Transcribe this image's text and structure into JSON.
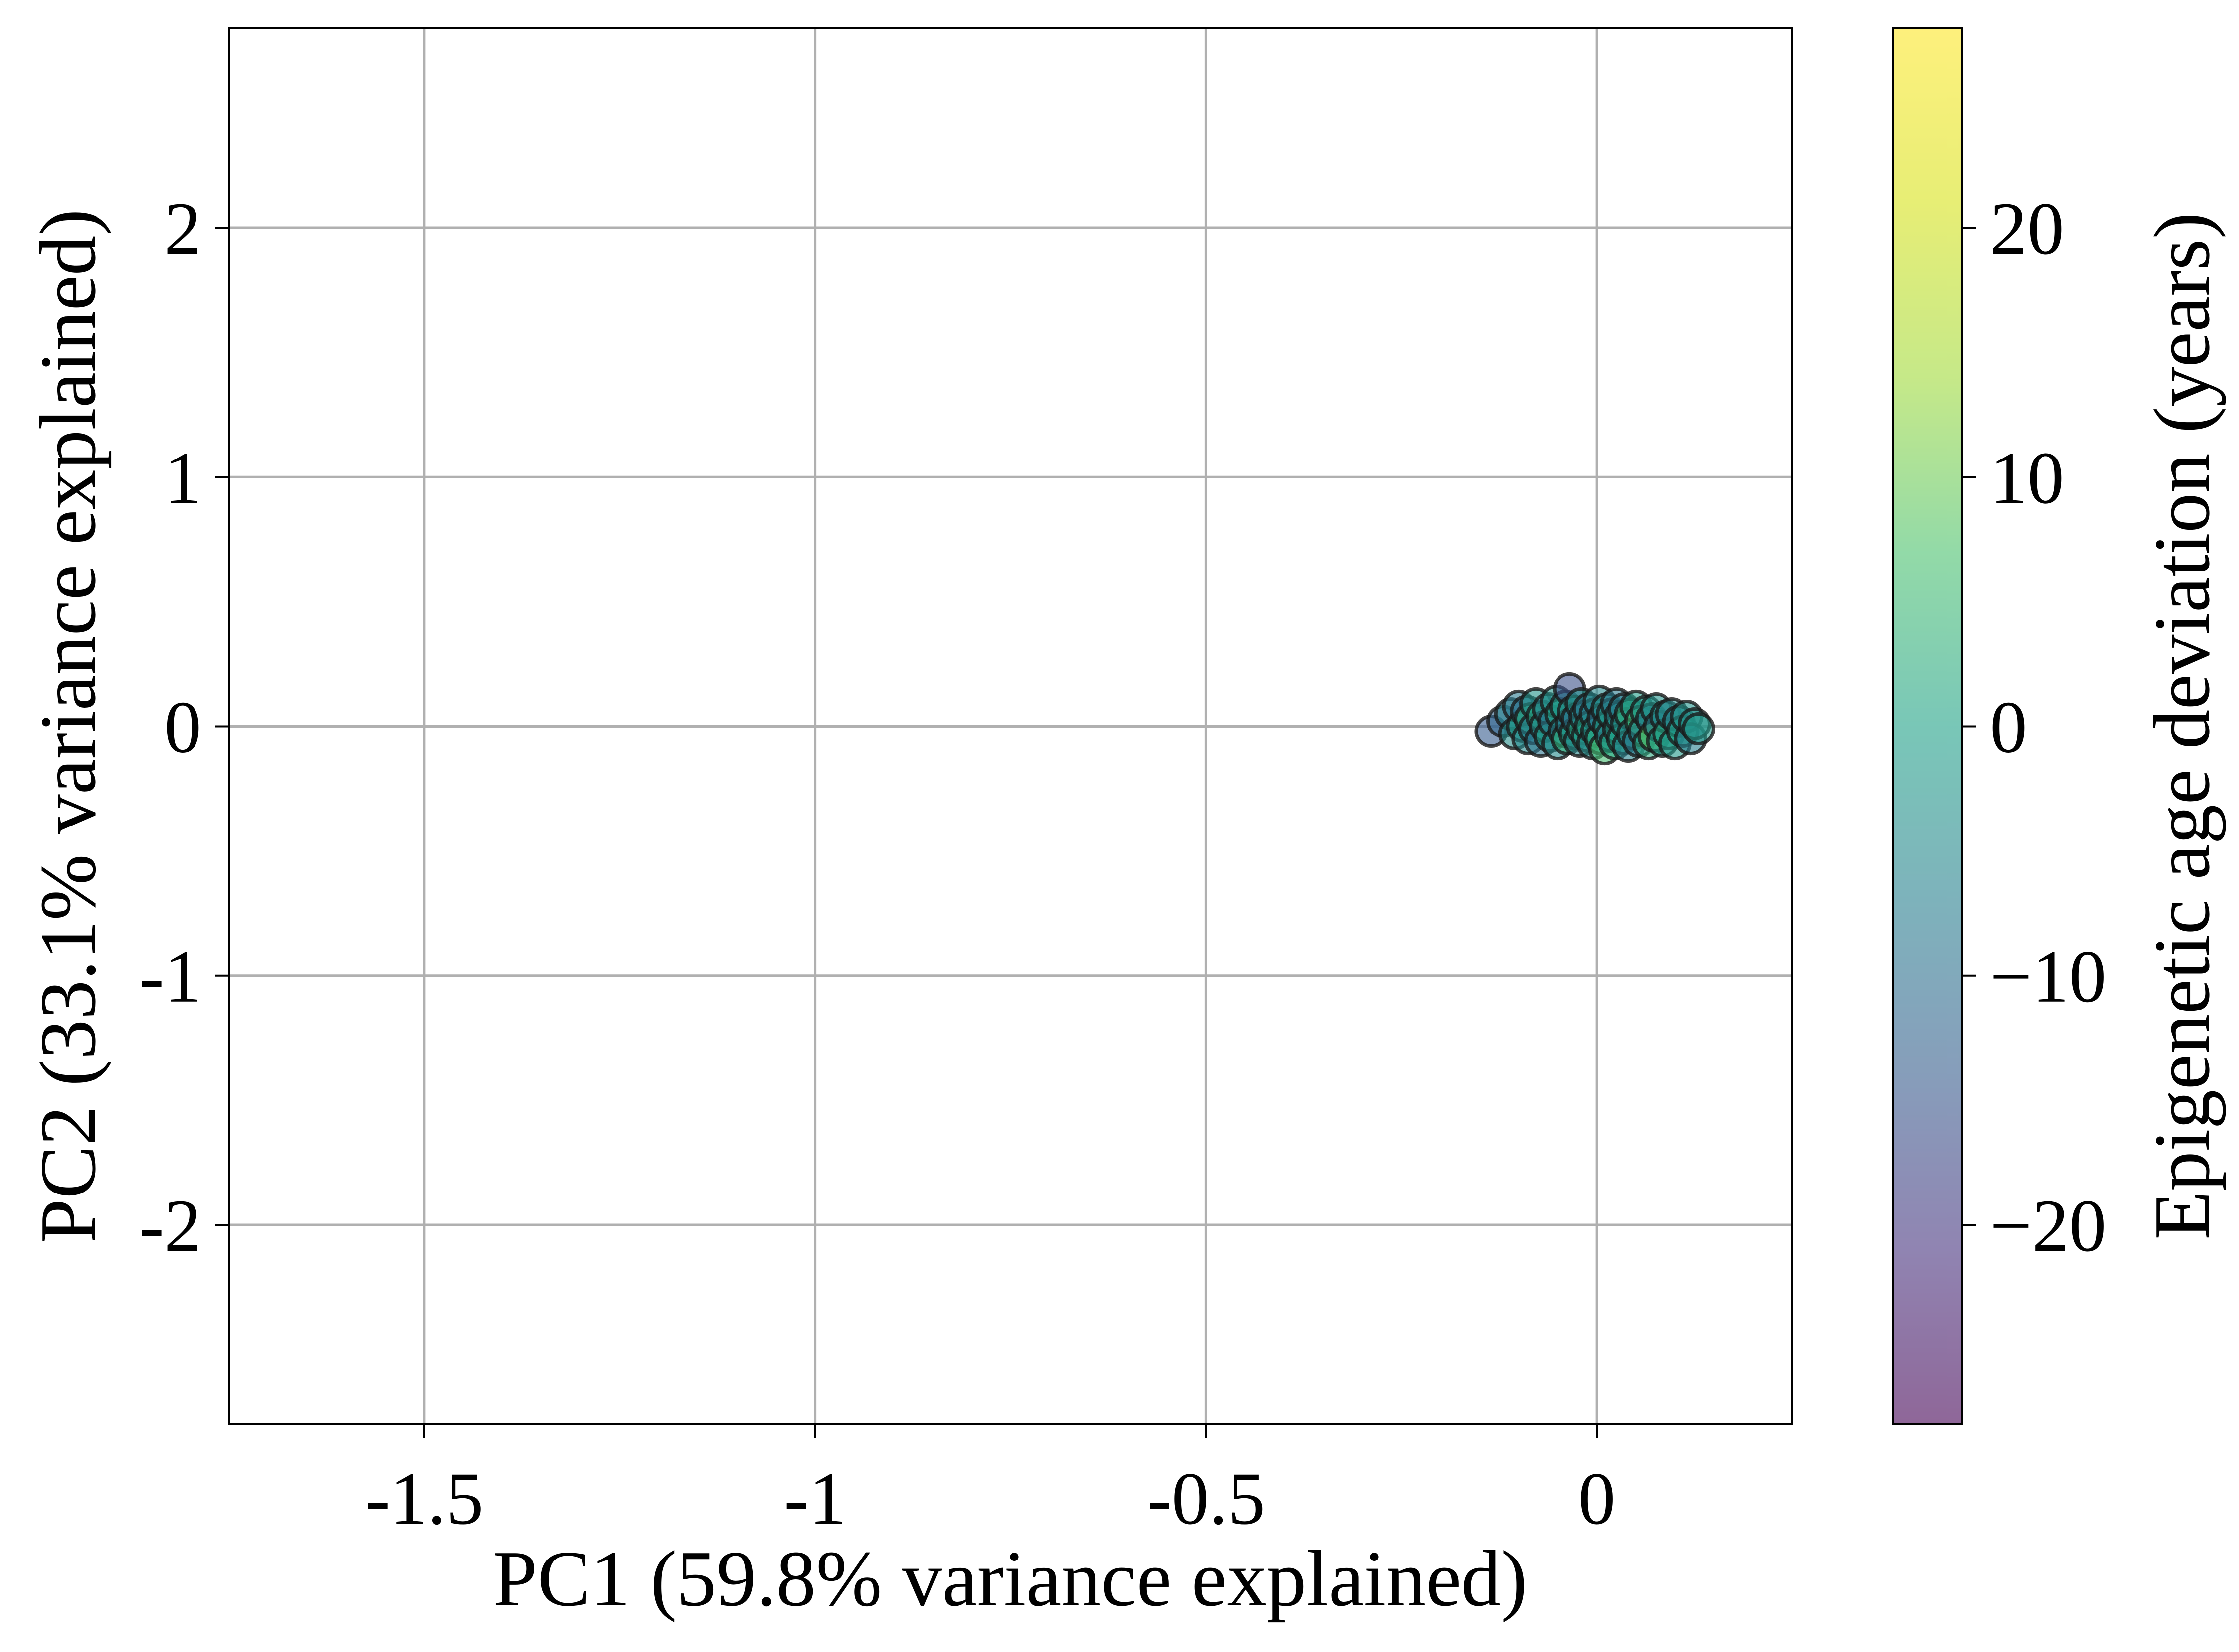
{
  "chart_data": {
    "type": "scatter",
    "title": "",
    "xlabel": "PC1 (59.8% variance explained)",
    "ylabel": "PC2 (33.1% variance explained)",
    "xlim": [
      -1.75,
      0.25
    ],
    "ylim": [
      -2.8,
      2.8
    ],
    "x_ticks": [
      {
        "value": -1.5,
        "label": "-1.5"
      },
      {
        "value": -1.0,
        "label": "-1"
      },
      {
        "value": -0.5,
        "label": "-0.5"
      },
      {
        "value": 0.0,
        "label": "0"
      }
    ],
    "y_ticks": [
      {
        "value": 2,
        "label": "2"
      },
      {
        "value": 1,
        "label": "1"
      },
      {
        "value": 0,
        "label": "0"
      },
      {
        "value": -1,
        "label": "-1"
      },
      {
        "value": -2,
        "label": "-2"
      }
    ],
    "grid": true,
    "colorbar": {
      "label": "Epigenetic age deviation (years)",
      "colormap": "viridis",
      "range": [
        -28,
        28
      ],
      "ticks": [
        {
          "value": 20,
          "label": "20"
        },
        {
          "value": 10,
          "label": "10"
        },
        {
          "value": 0,
          "label": "0"
        },
        {
          "value": -10,
          "label": "−10"
        },
        {
          "value": -20,
          "label": "−20"
        }
      ]
    },
    "points": [
      {
        "x": -0.135,
        "y": -0.02,
        "c": -14
      },
      {
        "x": -0.12,
        "y": 0.02,
        "c": -12
      },
      {
        "x": -0.11,
        "y": 0.05,
        "c": -6
      },
      {
        "x": -0.105,
        "y": -0.03,
        "c": -4
      },
      {
        "x": -0.1,
        "y": 0.08,
        "c": -8
      },
      {
        "x": -0.095,
        "y": 0.0,
        "c": -2
      },
      {
        "x": -0.09,
        "y": 0.06,
        "c": -10
      },
      {
        "x": -0.088,
        "y": -0.05,
        "c": -5
      },
      {
        "x": -0.085,
        "y": 0.03,
        "c": 2
      },
      {
        "x": -0.08,
        "y": -0.01,
        "c": -7
      },
      {
        "x": -0.078,
        "y": 0.09,
        "c": -3
      },
      {
        "x": -0.072,
        "y": -0.06,
        "c": -9
      },
      {
        "x": -0.07,
        "y": 0.04,
        "c": 1
      },
      {
        "x": -0.066,
        "y": 0.0,
        "c": -4
      },
      {
        "x": -0.062,
        "y": 0.07,
        "c": -6
      },
      {
        "x": -0.06,
        "y": -0.04,
        "c": -1
      },
      {
        "x": -0.055,
        "y": 0.02,
        "c": -8
      },
      {
        "x": -0.052,
        "y": 0.1,
        "c": -3
      },
      {
        "x": -0.05,
        "y": -0.07,
        "c": -5
      },
      {
        "x": -0.046,
        "y": 0.05,
        "c": 0
      },
      {
        "x": -0.042,
        "y": -0.02,
        "c": -6
      },
      {
        "x": -0.04,
        "y": 0.08,
        "c": -2
      },
      {
        "x": -0.038,
        "y": -0.05,
        "c": 3
      },
      {
        "x": -0.035,
        "y": 0.15,
        "c": -16
      },
      {
        "x": -0.033,
        "y": 0.01,
        "c": -7
      },
      {
        "x": -0.03,
        "y": 0.06,
        "c": -4
      },
      {
        "x": -0.028,
        "y": -0.03,
        "c": -1
      },
      {
        "x": -0.025,
        "y": 0.03,
        "c": -9
      },
      {
        "x": -0.022,
        "y": -0.06,
        "c": -5
      },
      {
        "x": -0.02,
        "y": 0.09,
        "c": -3
      },
      {
        "x": -0.018,
        "y": -0.01,
        "c": 1
      },
      {
        "x": -0.015,
        "y": 0.04,
        "c": -6
      },
      {
        "x": -0.012,
        "y": -0.04,
        "c": -2
      },
      {
        "x": -0.01,
        "y": 0.07,
        "c": -8
      },
      {
        "x": -0.008,
        "y": 0.0,
        "c": 0
      },
      {
        "x": -0.005,
        "y": -0.07,
        "c": -4
      },
      {
        "x": -0.002,
        "y": 0.05,
        "c": -7
      },
      {
        "x": 0.0,
        "y": -0.02,
        "c": -3
      },
      {
        "x": 0.003,
        "y": 0.1,
        "c": -5
      },
      {
        "x": 0.005,
        "y": -0.05,
        "c": 2
      },
      {
        "x": 0.008,
        "y": 0.03,
        "c": -9
      },
      {
        "x": 0.01,
        "y": -0.09,
        "c": 6
      },
      {
        "x": 0.013,
        "y": 0.07,
        "c": -4
      },
      {
        "x": 0.015,
        "y": 0.0,
        "c": -1
      },
      {
        "x": 0.018,
        "y": -0.04,
        "c": -6
      },
      {
        "x": 0.02,
        "y": 0.05,
        "c": -3
      },
      {
        "x": 0.023,
        "y": -0.07,
        "c": 1
      },
      {
        "x": 0.025,
        "y": 0.09,
        "c": -8
      },
      {
        "x": 0.028,
        "y": -0.01,
        "c": -2
      },
      {
        "x": 0.03,
        "y": 0.04,
        "c": -5
      },
      {
        "x": 0.033,
        "y": -0.05,
        "c": 0
      },
      {
        "x": 0.035,
        "y": 0.07,
        "c": -7
      },
      {
        "x": 0.038,
        "y": 0.01,
        "c": -3
      },
      {
        "x": 0.04,
        "y": -0.08,
        "c": -6
      },
      {
        "x": 0.043,
        "y": 0.05,
        "c": 3
      },
      {
        "x": 0.046,
        "y": -0.03,
        "c": -4
      },
      {
        "x": 0.05,
        "y": 0.08,
        "c": -1
      },
      {
        "x": 0.053,
        "y": -0.06,
        "c": -8
      },
      {
        "x": 0.056,
        "y": 0.02,
        "c": 5
      },
      {
        "x": 0.06,
        "y": -0.02,
        "c": -5
      },
      {
        "x": 0.063,
        "y": 0.06,
        "c": -2
      },
      {
        "x": 0.066,
        "y": -0.07,
        "c": 2
      },
      {
        "x": 0.07,
        "y": 0.03,
        "c": -6
      },
      {
        "x": 0.073,
        "y": -0.04,
        "c": 8
      },
      {
        "x": 0.076,
        "y": 0.07,
        "c": -3
      },
      {
        "x": 0.08,
        "y": 0.0,
        "c": -7
      },
      {
        "x": 0.084,
        "y": -0.06,
        "c": -1
      },
      {
        "x": 0.088,
        "y": 0.04,
        "c": -4
      },
      {
        "x": 0.092,
        "y": -0.03,
        "c": 1
      },
      {
        "x": 0.096,
        "y": 0.05,
        "c": -5
      },
      {
        "x": 0.1,
        "y": -0.07,
        "c": -2
      },
      {
        "x": 0.105,
        "y": 0.02,
        "c": -6
      },
      {
        "x": 0.11,
        "y": -0.02,
        "c": 0
      },
      {
        "x": 0.115,
        "y": 0.04,
        "c": -3
      },
      {
        "x": 0.12,
        "y": -0.05,
        "c": -7
      },
      {
        "x": 0.125,
        "y": 0.01,
        "c": -4
      },
      {
        "x": 0.13,
        "y": -0.01,
        "c": -2
      }
    ]
  }
}
